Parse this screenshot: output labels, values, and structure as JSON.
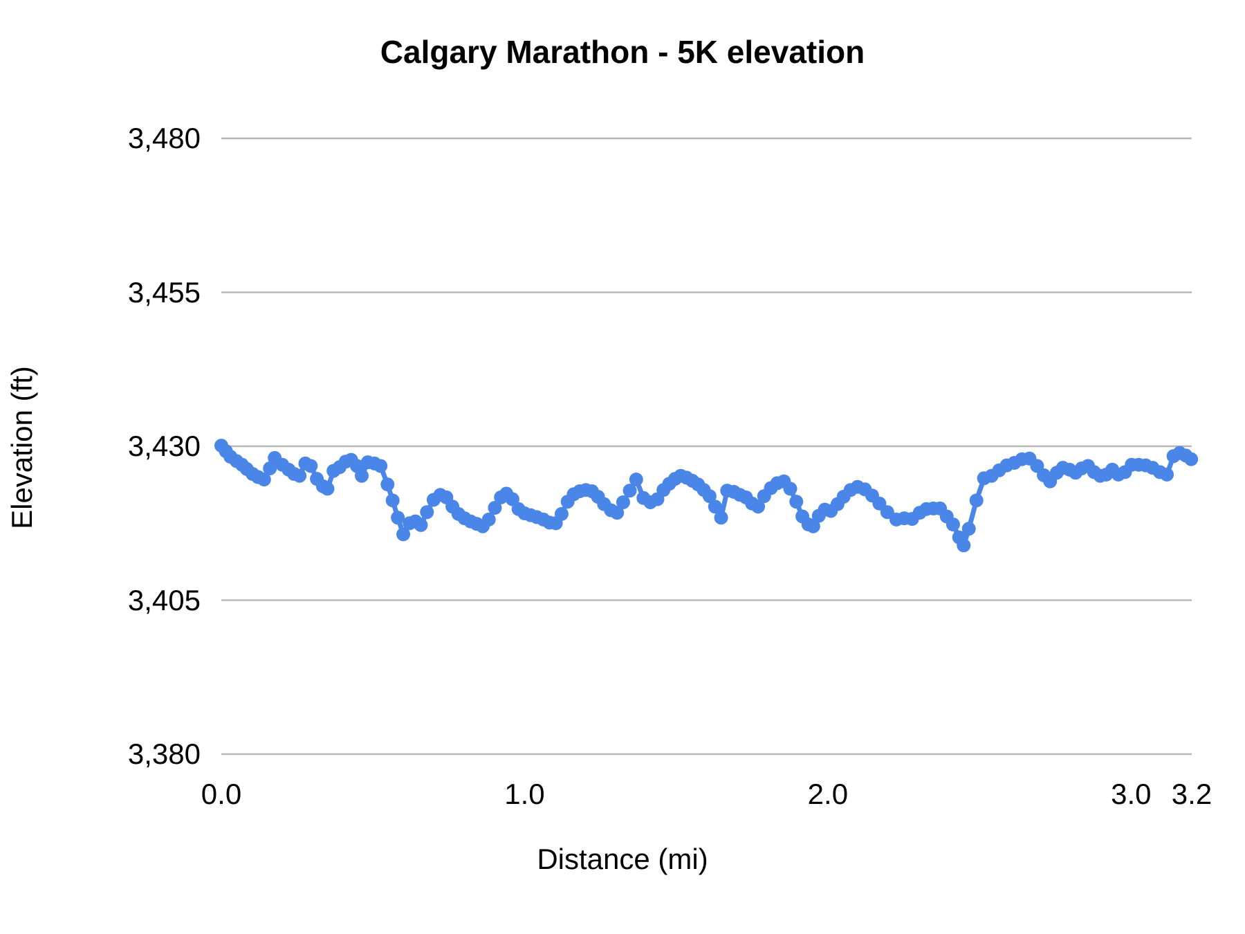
{
  "figure": {
    "title": "Calgary Marathon - 5K elevation",
    "x_axis_title": "Distance (mi)",
    "y_axis_title": "Elevation (ft)"
  },
  "colors": {
    "series": "#4a86e8",
    "gridline": "#b7b7b7",
    "text": "#000000",
    "background": "#ffffff"
  },
  "chart_data": {
    "type": "line",
    "title": "Calgary Marathon - 5K elevation",
    "xlabel": "Distance (mi)",
    "ylabel": "Elevation (ft)",
    "xlim": [
      0,
      3.2
    ],
    "ylim": [
      3380,
      3480
    ],
    "grid": "horizontal-only",
    "legend": "none",
    "marker": "circle",
    "x_ticks": [
      {
        "value": 0.0,
        "label": "0.0"
      },
      {
        "value": 1.0,
        "label": "1.0"
      },
      {
        "value": 2.0,
        "label": "2.0"
      },
      {
        "value": 3.0,
        "label": "3.0"
      },
      {
        "value": 3.2,
        "label": "3.2"
      }
    ],
    "y_ticks": [
      {
        "value": 3380,
        "label": "3,380"
      },
      {
        "value": 3405,
        "label": "3,405"
      },
      {
        "value": 3430,
        "label": "3,430"
      },
      {
        "value": 3455,
        "label": "3,455"
      },
      {
        "value": 3480,
        "label": "3,480"
      }
    ],
    "series": [
      {
        "name": "elevation",
        "points": [
          [
            0.0,
            3430.1
          ],
          [
            0.015,
            3429.2
          ],
          [
            0.03,
            3428.3
          ],
          [
            0.05,
            3427.6
          ],
          [
            0.068,
            3427.0
          ],
          [
            0.084,
            3426.3
          ],
          [
            0.103,
            3425.5
          ],
          [
            0.121,
            3425.0
          ],
          [
            0.141,
            3424.6
          ],
          [
            0.16,
            3426.4
          ],
          [
            0.176,
            3428.1
          ],
          [
            0.201,
            3427.0
          ],
          [
            0.222,
            3426.2
          ],
          [
            0.24,
            3425.5
          ],
          [
            0.258,
            3425.2
          ],
          [
            0.277,
            3427.2
          ],
          [
            0.295,
            3426.8
          ],
          [
            0.315,
            3424.7
          ],
          [
            0.335,
            3423.5
          ],
          [
            0.35,
            3423.1
          ],
          [
            0.37,
            3426.0
          ],
          [
            0.39,
            3426.6
          ],
          [
            0.41,
            3427.5
          ],
          [
            0.428,
            3427.8
          ],
          [
            0.447,
            3426.8
          ],
          [
            0.463,
            3425.2
          ],
          [
            0.483,
            3427.4
          ],
          [
            0.505,
            3427.2
          ],
          [
            0.525,
            3426.8
          ],
          [
            0.548,
            3423.8
          ],
          [
            0.565,
            3421.2
          ],
          [
            0.582,
            3418.4
          ],
          [
            0.6,
            3415.7
          ],
          [
            0.621,
            3417.5
          ],
          [
            0.64,
            3417.8
          ],
          [
            0.658,
            3417.2
          ],
          [
            0.678,
            3419.3
          ],
          [
            0.7,
            3421.3
          ],
          [
            0.722,
            3422.1
          ],
          [
            0.742,
            3421.7
          ],
          [
            0.762,
            3420.2
          ],
          [
            0.782,
            3419.0
          ],
          [
            0.802,
            3418.3
          ],
          [
            0.822,
            3417.8
          ],
          [
            0.842,
            3417.4
          ],
          [
            0.862,
            3417.0
          ],
          [
            0.882,
            3418.1
          ],
          [
            0.902,
            3420.0
          ],
          [
            0.922,
            3421.7
          ],
          [
            0.94,
            3422.3
          ],
          [
            0.96,
            3421.4
          ],
          [
            0.98,
            3419.8
          ],
          [
            1.0,
            3419.1
          ],
          [
            1.02,
            3418.8
          ],
          [
            1.04,
            3418.5
          ],
          [
            1.062,
            3418.1
          ],
          [
            1.082,
            3417.6
          ],
          [
            1.103,
            3417.5
          ],
          [
            1.122,
            3419.0
          ],
          [
            1.142,
            3421.0
          ],
          [
            1.162,
            3422.2
          ],
          [
            1.182,
            3422.7
          ],
          [
            1.202,
            3422.9
          ],
          [
            1.222,
            3422.7
          ],
          [
            1.242,
            3421.8
          ],
          [
            1.262,
            3420.6
          ],
          [
            1.285,
            3419.6
          ],
          [
            1.305,
            3419.2
          ],
          [
            1.325,
            3420.9
          ],
          [
            1.347,
            3422.8
          ],
          [
            1.368,
            3424.6
          ],
          [
            1.392,
            3421.6
          ],
          [
            1.415,
            3420.9
          ],
          [
            1.438,
            3421.4
          ],
          [
            1.458,
            3422.9
          ],
          [
            1.477,
            3423.9
          ],
          [
            1.496,
            3424.7
          ],
          [
            1.515,
            3425.2
          ],
          [
            1.534,
            3424.9
          ],
          [
            1.553,
            3424.4
          ],
          [
            1.572,
            3423.8
          ],
          [
            1.591,
            3422.9
          ],
          [
            1.61,
            3421.9
          ],
          [
            1.628,
            3420.2
          ],
          [
            1.648,
            3418.4
          ],
          [
            1.668,
            3422.8
          ],
          [
            1.69,
            3422.6
          ],
          [
            1.71,
            3422.1
          ],
          [
            1.73,
            3421.7
          ],
          [
            1.75,
            3420.7
          ],
          [
            1.77,
            3420.2
          ],
          [
            1.79,
            3421.9
          ],
          [
            1.812,
            3423.2
          ],
          [
            1.833,
            3424.0
          ],
          [
            1.855,
            3424.3
          ],
          [
            1.876,
            3423.1
          ],
          [
            1.896,
            3421.0
          ],
          [
            1.916,
            3418.6
          ],
          [
            1.936,
            3417.3
          ],
          [
            1.952,
            3417.0
          ],
          [
            1.97,
            3418.7
          ],
          [
            1.99,
            3419.7
          ],
          [
            2.01,
            3419.5
          ],
          [
            2.032,
            3420.6
          ],
          [
            2.052,
            3421.8
          ],
          [
            2.075,
            3422.9
          ],
          [
            2.098,
            3423.4
          ],
          [
            2.122,
            3423.0
          ],
          [
            2.146,
            3422.0
          ],
          [
            2.17,
            3420.7
          ],
          [
            2.196,
            3419.3
          ],
          [
            2.226,
            3418.1
          ],
          [
            2.252,
            3418.3
          ],
          [
            2.278,
            3418.2
          ],
          [
            2.303,
            3419.2
          ],
          [
            2.325,
            3419.8
          ],
          [
            2.348,
            3419.9
          ],
          [
            2.37,
            3419.9
          ],
          [
            2.392,
            3418.6
          ],
          [
            2.413,
            3417.3
          ],
          [
            2.433,
            3415.2
          ],
          [
            2.448,
            3413.9
          ],
          [
            2.465,
            3416.6
          ],
          [
            2.49,
            3421.2
          ],
          [
            2.515,
            3424.8
          ],
          [
            2.54,
            3425.2
          ],
          [
            2.565,
            3426.1
          ],
          [
            2.59,
            3426.9
          ],
          [
            2.615,
            3427.3
          ],
          [
            2.64,
            3427.9
          ],
          [
            2.665,
            3428.0
          ],
          [
            2.69,
            3426.8
          ],
          [
            2.712,
            3425.3
          ],
          [
            2.733,
            3424.3
          ],
          [
            2.755,
            3425.7
          ],
          [
            2.775,
            3426.5
          ],
          [
            2.797,
            3426.2
          ],
          [
            2.817,
            3425.7
          ],
          [
            2.837,
            3426.4
          ],
          [
            2.858,
            3426.8
          ],
          [
            2.878,
            3425.8
          ],
          [
            2.898,
            3425.2
          ],
          [
            2.918,
            3425.4
          ],
          [
            2.938,
            3426.2
          ],
          [
            2.958,
            3425.4
          ],
          [
            2.98,
            3425.8
          ],
          [
            3.002,
            3427.0
          ],
          [
            3.025,
            3427.0
          ],
          [
            3.048,
            3426.9
          ],
          [
            3.071,
            3426.5
          ],
          [
            3.095,
            3425.8
          ],
          [
            3.118,
            3425.4
          ],
          [
            3.14,
            3428.4
          ],
          [
            3.16,
            3428.9
          ],
          [
            3.18,
            3428.5
          ],
          [
            3.198,
            3427.9
          ]
        ]
      }
    ]
  }
}
